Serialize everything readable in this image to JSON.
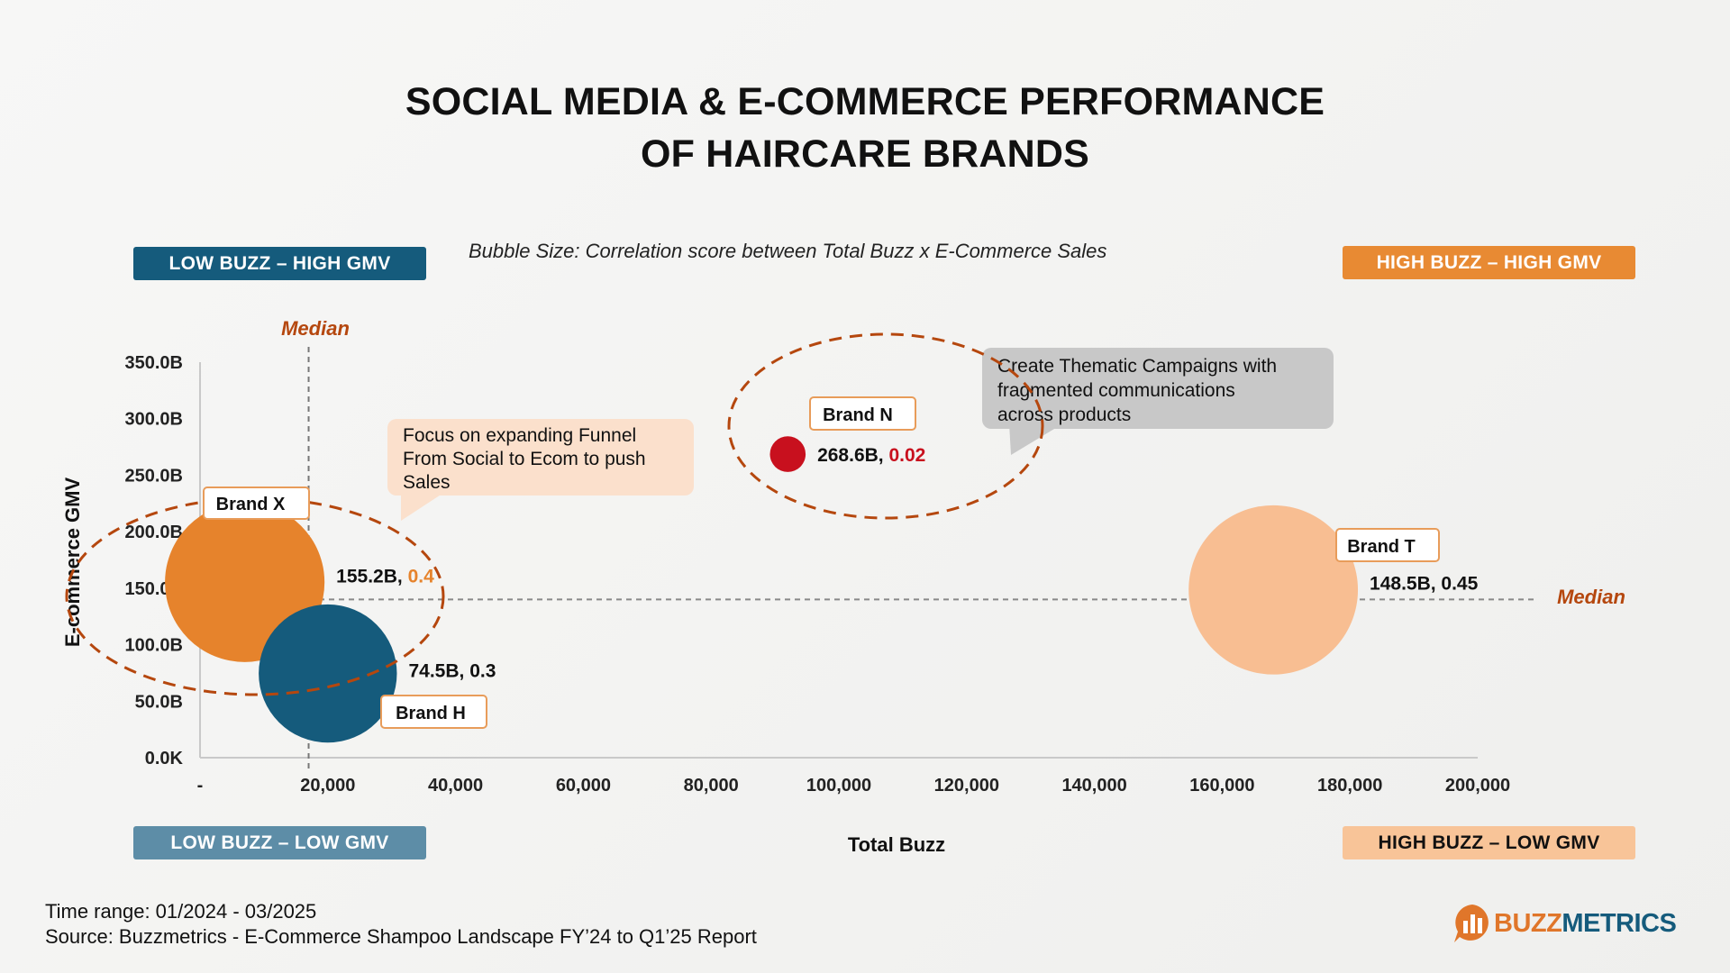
{
  "title": {
    "line1": "SOCIAL MEDIA & E-COMMERCE PERFORMANCE",
    "line2": "OF HAIRCARE BRANDS"
  },
  "bubble_size_note": "Bubble Size: Correlation score between Total Buzz x E-Commerce Sales",
  "quadrants": {
    "low_buzz_high_gmv": "LOW BUZZ – HIGH GMV",
    "high_buzz_high_gmv": "HIGH BUZZ – HIGH GMV",
    "low_buzz_low_gmv": "LOW BUZZ – LOW GMV",
    "high_buzz_low_gmv": "HIGH BUZZ – LOW GMV"
  },
  "median_x_label": "Median",
  "median_y_label": "Median",
  "callouts": {
    "funnel": [
      "Focus on expanding Funnel",
      "From Social to Ecom to push",
      "Sales"
    ],
    "thematic": [
      "Create Thematic Campaigns with",
      "fragmented communications",
      "across products"
    ]
  },
  "chart_data": {
    "type": "scatter",
    "xlabel": "Total Buzz",
    "ylabel": "E-commerce GMV",
    "xlim": [
      0,
      200000
    ],
    "ylim": [
      0,
      350
    ],
    "x_ticks": [
      "-",
      "20,000",
      "40,000",
      "60,000",
      "80,000",
      "100,000",
      "120,000",
      "140,000",
      "160,000",
      "180,000",
      "200,000"
    ],
    "y_ticks": [
      "0.0K",
      "50.0B",
      "100.0B",
      "150.0B",
      "200.0B",
      "250.0B",
      "300.0B",
      "350.0B"
    ],
    "median_x": 17000,
    "median_y": 140,
    "points": [
      {
        "name": "Brand X",
        "x": 7000,
        "y": 155.2,
        "size": 0.4,
        "gmv_label": "155.2B",
        "score_label": "0.4",
        "color": "#e6832c",
        "score_color": "#e6832c"
      },
      {
        "name": "Brand H",
        "x": 20000,
        "y": 74.5,
        "size": 0.3,
        "gmv_label": "74.5B",
        "score_label": "0.3",
        "color": "#155b7c",
        "score_color": "#111111"
      },
      {
        "name": "Brand N",
        "x": 92000,
        "y": 268.6,
        "size": 0.02,
        "gmv_label": "268.6B",
        "score_label": "0.02",
        "color": "#c8101e",
        "score_color": "#c8101e"
      },
      {
        "name": "Brand T",
        "x": 168000,
        "y": 148.5,
        "size": 0.45,
        "gmv_label": "148.5B",
        "score_label": "0.45",
        "color": "#f8be92",
        "score_color": "#111111"
      }
    ]
  },
  "footer": {
    "time_range": "Time range: 01/2024 - 03/2025",
    "source": "Source: Buzzmetrics - E-Commerce Shampoo Landscape FY’24 to Q1’25 Report"
  },
  "logo": {
    "part1": "BUZZ",
    "part2": "METRICS",
    "icon": "bar-chart-logo-icon"
  },
  "colors": {
    "navy": "#155b7c",
    "orange": "#e88a33",
    "median": "#b5470e",
    "dashed_circle": "#b5470e"
  }
}
